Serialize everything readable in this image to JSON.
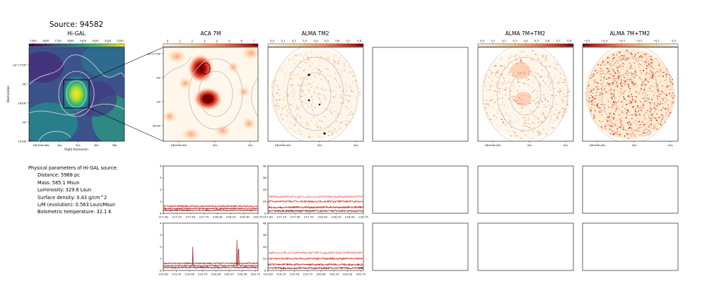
{
  "figure": {
    "source_title": "Source: 94582"
  },
  "panels": {
    "higal": {
      "title": "Hi-GAL",
      "colorbar_ticks": [
        "1500",
        "1600",
        "1700",
        "1800",
        "1900",
        "2000",
        "2100",
        "2200"
      ],
      "dec_ticks": [
        "-10°17'00\"",
        "30\"",
        "18'00\"",
        "30\"",
        "19'00\""
      ],
      "ra_ticks": [
        "18h29m46s",
        "44s",
        "42s",
        "40s",
        "38s"
      ],
      "xlabel": "Right Ascension",
      "ylabel": "Declination"
    },
    "aca": {
      "title": "ACA 7M",
      "colorbar_ticks": [
        "0",
        "1",
        "2",
        "3",
        "4",
        "5",
        "6",
        "7"
      ],
      "dec_ticks": [
        "-10°17'30\"",
        "40\"",
        "50\"",
        "18'00\""
      ],
      "ra_ticks": [
        "18h29m43s",
        "42s",
        "41s"
      ]
    },
    "alma_tm2": {
      "title": "ALMA TM2",
      "colorbar_ticks": [
        "0.0",
        "0.1",
        "0.2",
        "0.3",
        "0.4",
        "0.5",
        "0.6",
        "0.7",
        "0.8"
      ],
      "ra_ticks": [
        "18h29m43s",
        "42s",
        "41s"
      ]
    },
    "alma_7m_tm2": {
      "title": "ALMA 7M+TM2",
      "colorbar_ticks": [
        "0.0",
        "0.1",
        "0.2",
        "0.3",
        "0.4",
        "0.5",
        "0.6",
        "0.7",
        "0.8"
      ],
      "ra_ticks": [
        "18h29m43s",
        "42s",
        "41s"
      ]
    },
    "alma_7m_tm2_b": {
      "title": "ALMA 7M+TM2",
      "colorbar_ticks": [
        "−0.5",
        "−0.4",
        "−0.3",
        "−0.2",
        "−0.1",
        "0.0"
      ],
      "ra_ticks": [
        "18h29m43s",
        "42s",
        "41s"
      ]
    }
  },
  "parameters": {
    "heading": "Physical parameters of Hi-GAL source:",
    "lines": [
      "Distance: 5968 pc",
      "Mass: 585.1 Msun",
      "Luminosity: 329.6 Lsun",
      "Surface density: 0.43 g/cm^2",
      "L/M (evolution): 0.563 Lsun/Msun",
      "Bolometric temperature: 32.1 K"
    ]
  },
  "chart_data": [
    {
      "type": "line",
      "panel": "aca-spectrum-row1",
      "x_range": [
        217.0,
        218.75
      ],
      "ylim": [
        0,
        4
      ],
      "xticks": [
        "217.00",
        "217.25",
        "217.50",
        "217.75",
        "218.00",
        "218.25",
        "218.50",
        "218.75"
      ],
      "yticks": [
        "0",
        "1",
        "2",
        "3",
        "4"
      ],
      "colors": [
        "#7a0c0c",
        "#c62828",
        "#a01515"
      ],
      "series": [
        {
          "level": 0.25,
          "noise": 0.05
        },
        {
          "level": 0.6,
          "noise": 0.06
        },
        {
          "level": 0.4,
          "noise": 0.05
        }
      ],
      "peaks": []
    },
    {
      "type": "line",
      "panel": "tm2-spectrum-row1",
      "x_range": [
        217.0,
        218.75
      ],
      "ylim": [
        0,
        40
      ],
      "xticks": [
        "217.00",
        "217.25",
        "217.50",
        "217.75",
        "218.00",
        "218.25",
        "218.50",
        "218.75"
      ],
      "yticks": [
        "0",
        "10",
        "20",
        "30",
        "40"
      ],
      "colors": [
        "#f28b82",
        "#e53935",
        "#b71c1c",
        "#7a0c0c"
      ],
      "series": [
        {
          "level": 14,
          "noise": 0.9
        },
        {
          "level": 10,
          "noise": 0.8
        },
        {
          "level": 5,
          "noise": 0.7
        },
        {
          "level": 2,
          "noise": 0.6
        }
      ],
      "peaks": []
    },
    {
      "type": "line",
      "panel": "aca-spectrum-row2",
      "x_range": [
        219.0,
        220.8
      ],
      "ylim": [
        0,
        4
      ],
      "xticks": [
        "219.00",
        "219.25",
        "219.50",
        "219.75",
        "220.00",
        "220.25",
        "220.50",
        "220.75"
      ],
      "yticks": [
        "0",
        "1",
        "2",
        "3",
        "4"
      ],
      "colors": [
        "#7a0c0c",
        "#c62828",
        "#a01515"
      ],
      "series": [
        {
          "level": 0.25,
          "noise": 0.05
        },
        {
          "level": 0.6,
          "noise": 0.06
        },
        {
          "level": 0.4,
          "noise": 0.05
        }
      ],
      "peaks": [
        {
          "x": 219.56,
          "height": 1.6
        },
        {
          "x": 220.4,
          "height": 2.2
        },
        {
          "x": 220.43,
          "height": 1.4
        }
      ]
    },
    {
      "type": "line",
      "panel": "tm2-spectrum-row2",
      "x_range": [
        219.0,
        220.8
      ],
      "ylim": [
        0,
        40
      ],
      "xticks": [
        "219.00",
        "219.25",
        "219.50",
        "219.75",
        "220.00",
        "220.25",
        "220.50",
        "220.75"
      ],
      "yticks": [
        "0",
        "10",
        "20",
        "30",
        "40"
      ],
      "colors": [
        "#f28b82",
        "#e53935",
        "#b71c1c",
        "#7a0c0c"
      ],
      "series": [
        {
          "level": 15,
          "noise": 0.9
        },
        {
          "level": 10,
          "noise": 0.8
        },
        {
          "level": 5,
          "noise": 0.7
        },
        {
          "level": 2,
          "noise": 0.6
        }
      ],
      "peaks": []
    }
  ]
}
